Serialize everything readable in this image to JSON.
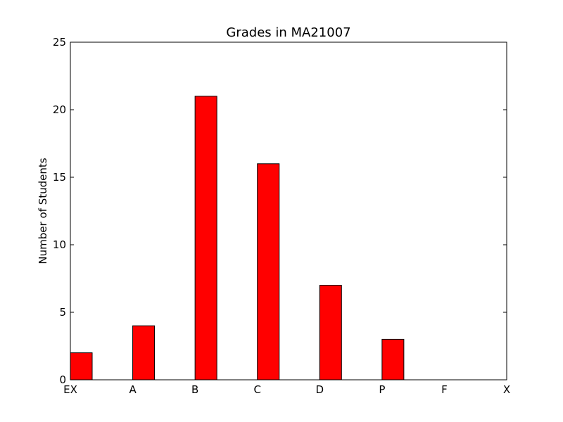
{
  "chart_data": {
    "type": "bar",
    "title": "Grades in MA21007",
    "xlabel": "",
    "ylabel": "Number of Students",
    "categories": [
      "EX",
      "A",
      "B",
      "C",
      "D",
      "P",
      "F",
      "X"
    ],
    "values": [
      2,
      4,
      21,
      16,
      7,
      3,
      0,
      0
    ],
    "ylim": [
      0,
      25
    ],
    "yticks": [
      0,
      5,
      10,
      15,
      20,
      25
    ],
    "bar_color": "#ff0000",
    "edge_color": "#000000",
    "grid": false,
    "legend": "none"
  }
}
